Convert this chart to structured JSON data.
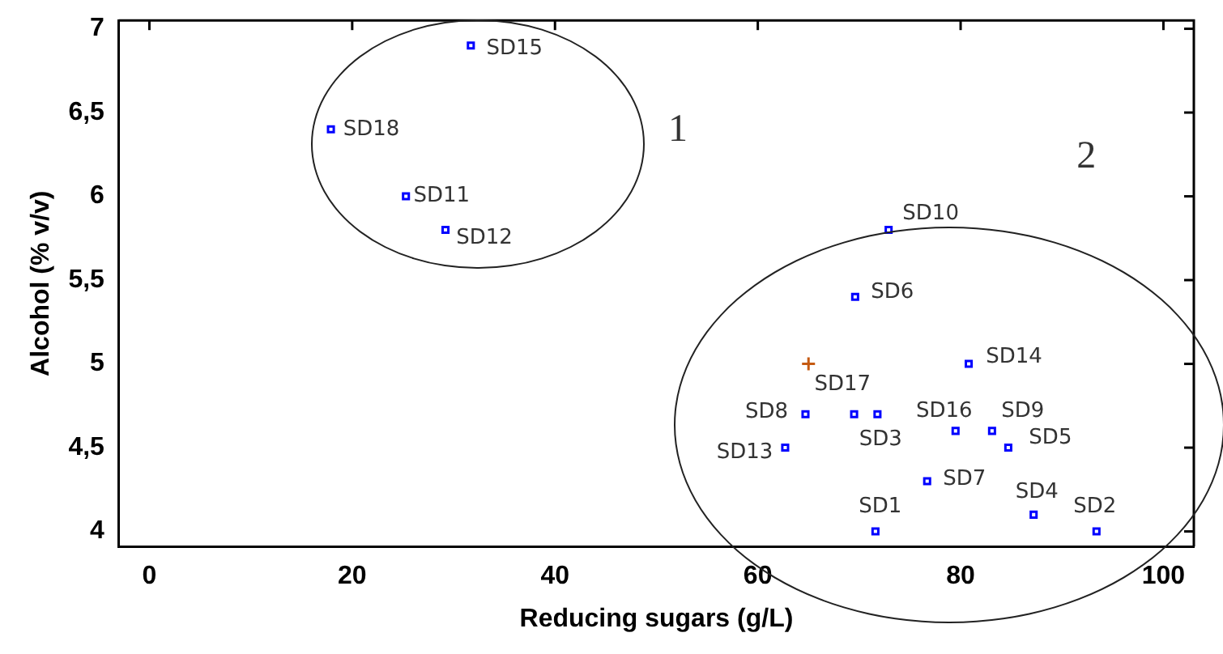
{
  "chart_data": {
    "type": "scatter",
    "xlabel": "Reducing sugars (g/L)",
    "ylabel": "Alcohol (% v/v)",
    "xlim": [
      -3,
      103
    ],
    "ylim": [
      3.91,
      7.05
    ],
    "xticks": [
      0,
      20,
      40,
      60,
      80,
      100
    ],
    "yticks": [
      4,
      {
        "value": 4.5,
        "label": "4,5"
      },
      5,
      {
        "value": 5.5,
        "label": "5,5"
      },
      6,
      {
        "value": 6.5,
        "label": "6,5"
      },
      7
    ],
    "grid": false,
    "legend": false,
    "series": [
      {
        "color": "#0000ff",
        "marker": "square",
        "x": [
          31.7,
          17.9,
          25.3,
          29.2,
          72.9,
          69.6,
          80.8,
          64.7,
          69.5,
          71.8,
          79.5,
          83.1,
          84.7,
          62.7,
          76.7,
          71.6,
          87.2,
          93.4
        ],
        "values": [
          6.9,
          6.4,
          6.0,
          5.8,
          5.8,
          5.4,
          5.0,
          4.7,
          4.7,
          4.7,
          4.6,
          4.6,
          4.5,
          4.5,
          4.3,
          4.0,
          4.1,
          4.0
        ]
      },
      {
        "color": "#c55a11",
        "marker": "cross",
        "x": [
          65.0
        ],
        "values": [
          5.0
        ]
      }
    ],
    "annotations": [
      {
        "text": "SD15",
        "x": 31.7,
        "y": 6.9
      },
      {
        "text": "SD18",
        "x": 17.9,
        "y": 6.4
      },
      {
        "text": "SD11",
        "x": 25.3,
        "y": 6.0
      },
      {
        "text": "SD12",
        "x": 29.2,
        "y": 5.8
      },
      {
        "text": "SD10",
        "x": 72.9,
        "y": 5.8
      },
      {
        "text": "SD6",
        "x": 69.6,
        "y": 5.4
      },
      {
        "text": "SD17",
        "x": 65.0,
        "y": 5.0
      },
      {
        "text": "SD14",
        "x": 80.8,
        "y": 5.0
      },
      {
        "text": "SD8",
        "x": 64.7,
        "y": 4.7
      },
      {
        "text": "SD3",
        "x": 71.8,
        "y": 4.7
      },
      {
        "text": "SD16",
        "x": 79.5,
        "y": 4.6
      },
      {
        "text": "SD9",
        "x": 83.1,
        "y": 4.6
      },
      {
        "text": "SD5",
        "x": 84.7,
        "y": 4.5
      },
      {
        "text": "SD13",
        "x": 62.7,
        "y": 4.5
      },
      {
        "text": "SD7",
        "x": 76.7,
        "y": 4.3
      },
      {
        "text": "SD1",
        "x": 71.6,
        "y": 4.0
      },
      {
        "text": "SD4",
        "x": 87.2,
        "y": 4.1
      },
      {
        "text": "SD2",
        "x": 93.4,
        "y": 4.0
      },
      "1",
      "2"
    ]
  }
}
